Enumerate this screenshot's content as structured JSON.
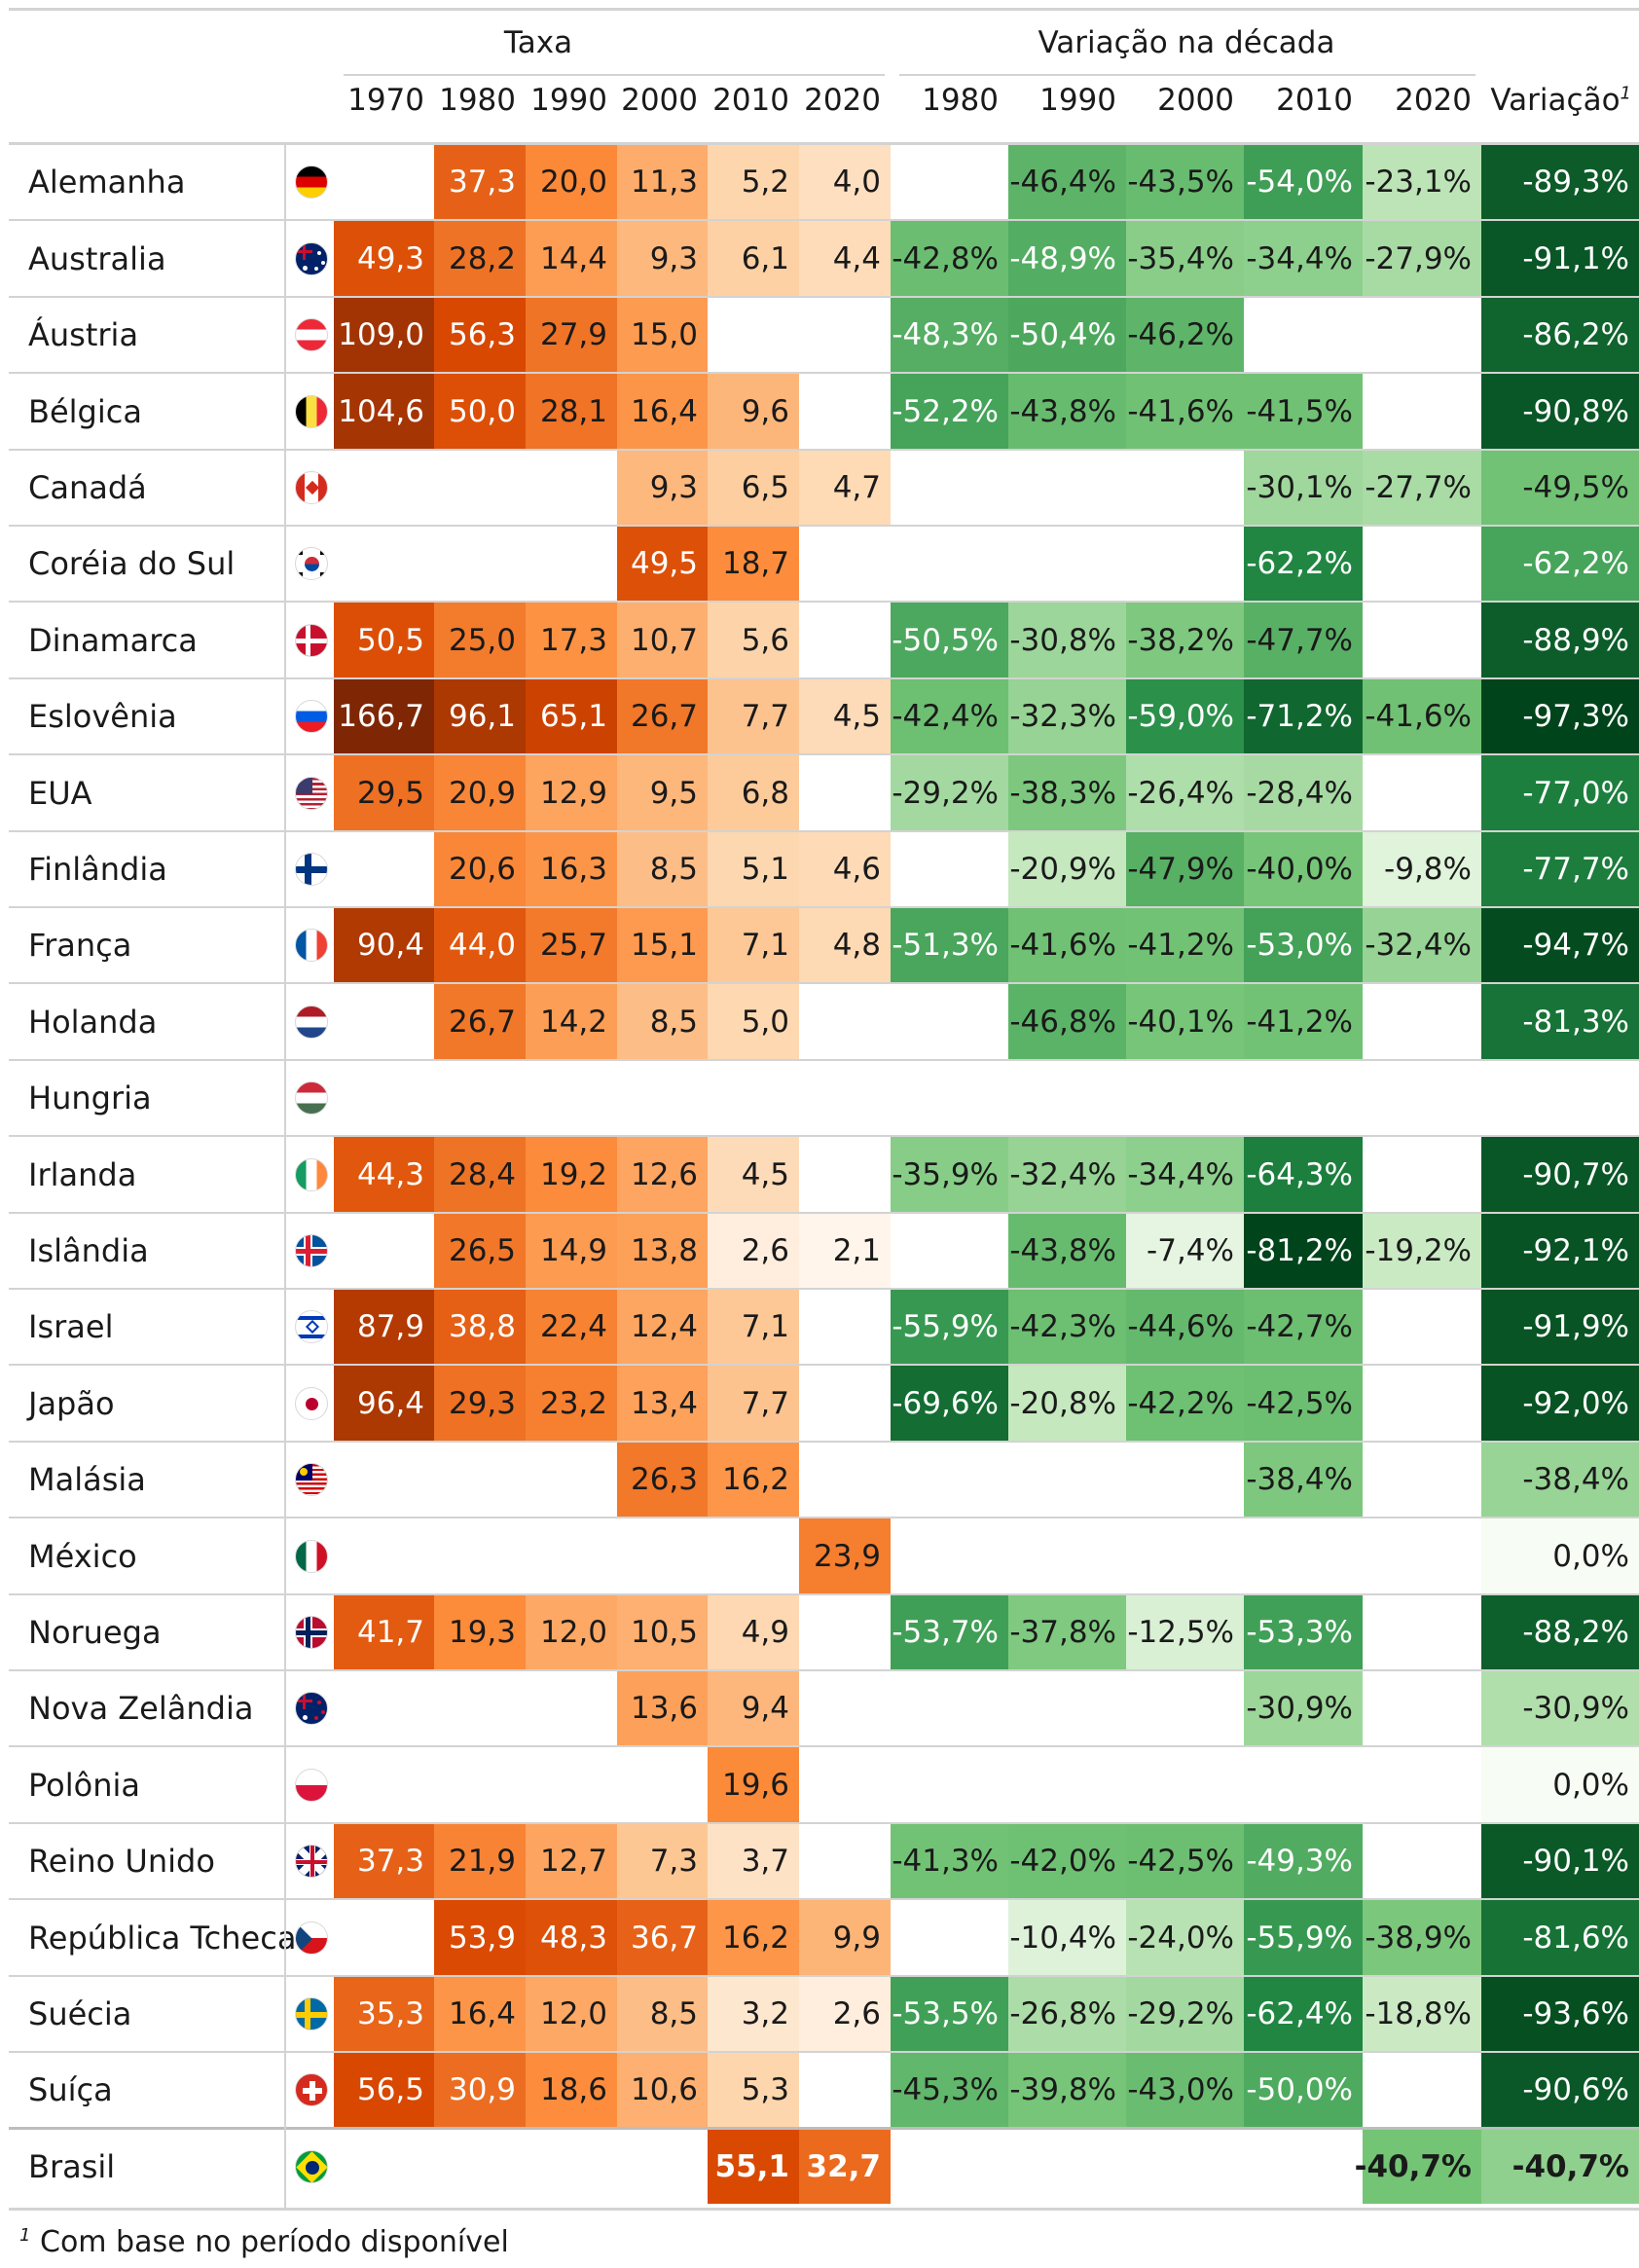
{
  "headers": {
    "group_taxa": "Taxa",
    "group_variacao": "Variação na década",
    "taxa_years": [
      "1970",
      "1980",
      "1990",
      "2000",
      "2010",
      "2020"
    ],
    "var_years": [
      "1980",
      "1990",
      "2000",
      "2010",
      "2020"
    ],
    "total": "Variação",
    "total_sup": "1"
  },
  "footnote": {
    "mark": "1",
    "text": "Com base no período disponível"
  },
  "colors": {
    "taxa_scale": [
      "#fff5eb",
      "#fdd0a2",
      "#fd8d3c",
      "#d94801",
      "#7f2704"
    ],
    "var_scale": [
      "#f7fcf5",
      "#c7e9c0",
      "#74c476",
      "#238b45",
      "#00441b"
    ]
  },
  "chart_data": {
    "type": "table",
    "rows": [
      {
        "country": "Alemanha",
        "flag": "de",
        "taxa": [
          null,
          37.3,
          20.0,
          11.3,
          5.2,
          4.0
        ],
        "var": [
          null,
          -46.4,
          -43.5,
          -54.0,
          -23.1
        ],
        "total": -89.3
      },
      {
        "country": "Australia",
        "flag": "au",
        "taxa": [
          49.3,
          28.2,
          14.4,
          9.3,
          6.1,
          4.4
        ],
        "var": [
          -42.8,
          -48.9,
          -35.4,
          -34.4,
          -27.9
        ],
        "total": -91.1
      },
      {
        "country": "Áustria",
        "flag": "at",
        "taxa": [
          109.0,
          56.3,
          27.9,
          15.0,
          null,
          null
        ],
        "var": [
          -48.3,
          -50.4,
          -46.2,
          null,
          null
        ],
        "total": -86.2
      },
      {
        "country": "Bélgica",
        "flag": "be",
        "taxa": [
          104.6,
          50.0,
          28.1,
          16.4,
          9.6,
          null
        ],
        "var": [
          -52.2,
          -43.8,
          -41.6,
          -41.5,
          null
        ],
        "total": -90.8
      },
      {
        "country": "Canadá",
        "flag": "ca",
        "taxa": [
          null,
          null,
          null,
          9.3,
          6.5,
          4.7
        ],
        "var": [
          null,
          null,
          null,
          -30.1,
          -27.7
        ],
        "total": -49.5
      },
      {
        "country": "Coréia do Sul",
        "flag": "kr",
        "taxa": [
          null,
          null,
          null,
          49.5,
          18.7,
          null
        ],
        "var": [
          null,
          null,
          null,
          -62.2,
          null
        ],
        "total": -62.2
      },
      {
        "country": "Dinamarca",
        "flag": "dk",
        "taxa": [
          50.5,
          25.0,
          17.3,
          10.7,
          5.6,
          null
        ],
        "var": [
          -50.5,
          -30.8,
          -38.2,
          -47.7,
          null
        ],
        "total": -88.9
      },
      {
        "country": "Eslovênia",
        "flag": "si",
        "taxa": [
          166.7,
          96.1,
          65.1,
          26.7,
          7.7,
          4.5
        ],
        "var": [
          -42.4,
          -32.3,
          -59.0,
          -71.2,
          -41.6
        ],
        "total": -97.3
      },
      {
        "country": "EUA",
        "flag": "us",
        "taxa": [
          29.5,
          20.9,
          12.9,
          9.5,
          6.8,
          null
        ],
        "var": [
          -29.2,
          -38.3,
          -26.4,
          -28.4,
          null
        ],
        "total": -77.0
      },
      {
        "country": "Finlândia",
        "flag": "fi",
        "taxa": [
          null,
          20.6,
          16.3,
          8.5,
          5.1,
          4.6
        ],
        "var": [
          null,
          -20.9,
          -47.9,
          -40.0,
          -9.8
        ],
        "total": -77.7
      },
      {
        "country": "França",
        "flag": "fr",
        "taxa": [
          90.4,
          44.0,
          25.7,
          15.1,
          7.1,
          4.8
        ],
        "var": [
          -51.3,
          -41.6,
          -41.2,
          -53.0,
          -32.4
        ],
        "total": -94.7
      },
      {
        "country": "Holanda",
        "flag": "nl",
        "taxa": [
          null,
          26.7,
          14.2,
          8.5,
          5.0,
          null
        ],
        "var": [
          null,
          -46.8,
          -40.1,
          -41.2,
          null
        ],
        "total": -81.3
      },
      {
        "country": "Hungria",
        "flag": "hu",
        "taxa": [
          null,
          null,
          null,
          null,
          null,
          null
        ],
        "var": [
          null,
          null,
          null,
          null,
          null
        ],
        "total": null
      },
      {
        "country": "Irlanda",
        "flag": "ie",
        "taxa": [
          44.3,
          28.4,
          19.2,
          12.6,
          4.5,
          null
        ],
        "var": [
          -35.9,
          -32.4,
          -34.4,
          -64.3,
          null
        ],
        "total": -90.7
      },
      {
        "country": "Islândia",
        "flag": "is",
        "taxa": [
          null,
          26.5,
          14.9,
          13.8,
          2.6,
          2.1
        ],
        "var": [
          null,
          -43.8,
          -7.4,
          -81.2,
          -19.2
        ],
        "total": -92.1
      },
      {
        "country": "Israel",
        "flag": "il",
        "taxa": [
          87.9,
          38.8,
          22.4,
          12.4,
          7.1,
          null
        ],
        "var": [
          -55.9,
          -42.3,
          -44.6,
          -42.7,
          null
        ],
        "total": -91.9
      },
      {
        "country": "Japão",
        "flag": "jp",
        "taxa": [
          96.4,
          29.3,
          23.2,
          13.4,
          7.7,
          null
        ],
        "var": [
          -69.6,
          -20.8,
          -42.2,
          -42.5,
          null
        ],
        "total": -92.0
      },
      {
        "country": "Malásia",
        "flag": "my",
        "taxa": [
          null,
          null,
          null,
          26.3,
          16.2,
          null
        ],
        "var": [
          null,
          null,
          null,
          -38.4,
          null
        ],
        "total": -38.4
      },
      {
        "country": "México",
        "flag": "mx",
        "taxa": [
          null,
          null,
          null,
          null,
          null,
          23.9
        ],
        "var": [
          null,
          null,
          null,
          null,
          null
        ],
        "total": 0.0
      },
      {
        "country": "Noruega",
        "flag": "no",
        "taxa": [
          41.7,
          19.3,
          12.0,
          10.5,
          4.9,
          null
        ],
        "var": [
          -53.7,
          -37.8,
          -12.5,
          -53.3,
          null
        ],
        "total": -88.2
      },
      {
        "country": "Nova Zelândia",
        "flag": "nz",
        "taxa": [
          null,
          null,
          null,
          13.6,
          9.4,
          null
        ],
        "var": [
          null,
          null,
          null,
          -30.9,
          null
        ],
        "total": -30.9
      },
      {
        "country": "Polônia",
        "flag": "pl",
        "taxa": [
          null,
          null,
          null,
          null,
          19.6,
          null
        ],
        "var": [
          null,
          null,
          null,
          null,
          null
        ],
        "total": 0.0
      },
      {
        "country": "Reino Unido",
        "flag": "gb",
        "taxa": [
          37.3,
          21.9,
          12.7,
          7.3,
          3.7,
          null
        ],
        "var": [
          -41.3,
          -42.0,
          -42.5,
          -49.3,
          null
        ],
        "total": -90.1
      },
      {
        "country": "República Tcheca",
        "flag": "cz",
        "taxa": [
          null,
          53.9,
          48.3,
          36.7,
          16.2,
          9.9
        ],
        "var": [
          null,
          -10.4,
          -24.0,
          -55.9,
          -38.9
        ],
        "total": -81.6
      },
      {
        "country": "Suécia",
        "flag": "se",
        "taxa": [
          35.3,
          16.4,
          12.0,
          8.5,
          3.2,
          2.6
        ],
        "var": [
          -53.5,
          -26.8,
          -29.2,
          -62.4,
          -18.8
        ],
        "total": -93.6
      },
      {
        "country": "Suíça",
        "flag": "ch",
        "taxa": [
          56.5,
          30.9,
          18.6,
          10.6,
          5.3,
          null
        ],
        "var": [
          -45.3,
          -39.8,
          -43.0,
          -50.0,
          null
        ],
        "total": -90.6
      },
      {
        "country": "Brasil",
        "flag": "br",
        "taxa": [
          null,
          null,
          null,
          null,
          55.1,
          32.7
        ],
        "var": [
          null,
          null,
          null,
          null,
          -40.7
        ],
        "total": -40.7,
        "bold": true
      }
    ]
  }
}
